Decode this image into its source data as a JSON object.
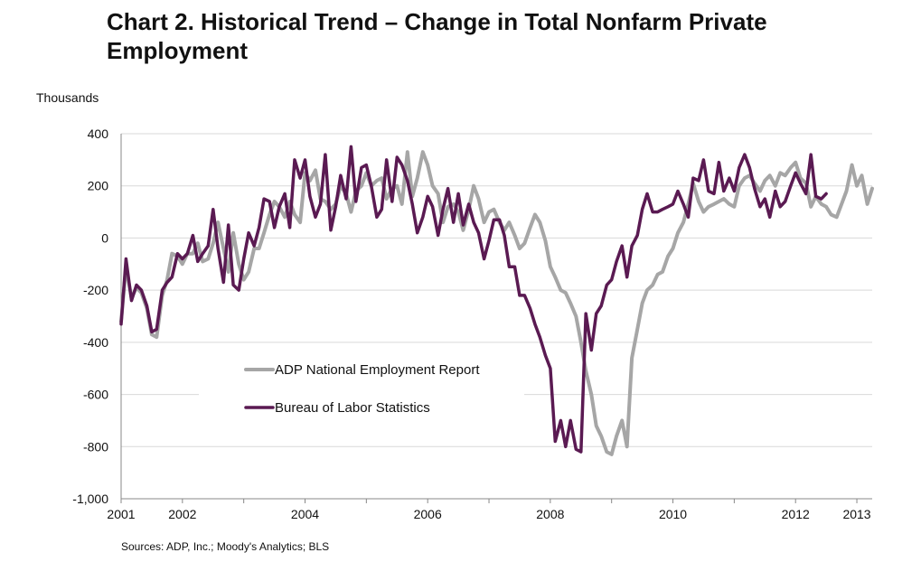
{
  "title": "Chart 2. Historical Trend – Change in Total Nonfarm Private Employment",
  "unit_label": "Thousands",
  "source": "Sources: ADP, Inc.; Moody's Analytics; BLS",
  "colors": {
    "adp": "#a6a6a6",
    "bls": "#5a1a52",
    "grid": "#d9d9d9",
    "axis": "#888888"
  },
  "chart_data": {
    "type": "line",
    "title": "Chart 2. Historical Trend – Change in Total Nonfarm Private Employment",
    "ylabel": "Thousands",
    "xlabel": "",
    "ylim": [
      -1000,
      400
    ],
    "xlim": [
      2001.0,
      2013.25
    ],
    "y_ticks": [
      400,
      200,
      0,
      -200,
      -400,
      -600,
      -800,
      -1000
    ],
    "y_tick_labels": [
      "400",
      "200",
      "0",
      "-200",
      "-400",
      "-600",
      "-800",
      "-1,000"
    ],
    "x_ticks": [
      2001,
      2002,
      2004,
      2006,
      2008,
      2010,
      2012,
      2013
    ],
    "grid": true,
    "legend_placement": "lower-left inside plot",
    "series": [
      {
        "name": "ADP National Employment Report",
        "color": "#a6a6a6",
        "points": [
          [
            2001.0,
            -320
          ],
          [
            2001.08,
            -110
          ],
          [
            2001.17,
            -230
          ],
          [
            2001.25,
            -190
          ],
          [
            2001.33,
            -210
          ],
          [
            2001.42,
            -270
          ],
          [
            2001.5,
            -370
          ],
          [
            2001.58,
            -380
          ],
          [
            2001.67,
            -220
          ],
          [
            2001.75,
            -160
          ],
          [
            2001.83,
            -60
          ],
          [
            2001.92,
            -70
          ],
          [
            2002.0,
            -100
          ],
          [
            2002.08,
            -60
          ],
          [
            2002.17,
            -60
          ],
          [
            2002.25,
            -20
          ],
          [
            2002.33,
            -90
          ],
          [
            2002.42,
            -80
          ],
          [
            2002.5,
            -20
          ],
          [
            2002.58,
            60
          ],
          [
            2002.67,
            -40
          ],
          [
            2002.75,
            -130
          ],
          [
            2002.83,
            20
          ],
          [
            2002.92,
            -100
          ],
          [
            2003.0,
            -160
          ],
          [
            2003.08,
            -130
          ],
          [
            2003.17,
            -40
          ],
          [
            2003.25,
            -40
          ],
          [
            2003.33,
            20
          ],
          [
            2003.42,
            90
          ],
          [
            2003.5,
            140
          ],
          [
            2003.58,
            120
          ],
          [
            2003.67,
            80
          ],
          [
            2003.75,
            140
          ],
          [
            2003.83,
            90
          ],
          [
            2003.92,
            60
          ],
          [
            2004.0,
            250
          ],
          [
            2004.08,
            220
          ],
          [
            2004.17,
            260
          ],
          [
            2004.25,
            150
          ],
          [
            2004.33,
            140
          ],
          [
            2004.42,
            110
          ],
          [
            2004.5,
            130
          ],
          [
            2004.58,
            200
          ],
          [
            2004.67,
            170
          ],
          [
            2004.75,
            100
          ],
          [
            2004.83,
            180
          ],
          [
            2004.92,
            200
          ],
          [
            2005.0,
            250
          ],
          [
            2005.08,
            200
          ],
          [
            2005.17,
            220
          ],
          [
            2005.25,
            230
          ],
          [
            2005.33,
            150
          ],
          [
            2005.42,
            190
          ],
          [
            2005.5,
            200
          ],
          [
            2005.58,
            130
          ],
          [
            2005.67,
            330
          ],
          [
            2005.75,
            160
          ],
          [
            2005.83,
            230
          ],
          [
            2005.92,
            330
          ],
          [
            2006.0,
            280
          ],
          [
            2006.08,
            200
          ],
          [
            2006.17,
            170
          ],
          [
            2006.25,
            60
          ],
          [
            2006.33,
            120
          ],
          [
            2006.42,
            130
          ],
          [
            2006.5,
            100
          ],
          [
            2006.58,
            30
          ],
          [
            2006.67,
            110
          ],
          [
            2006.75,
            200
          ],
          [
            2006.83,
            150
          ],
          [
            2006.92,
            60
          ],
          [
            2007.0,
            100
          ],
          [
            2007.08,
            110
          ],
          [
            2007.17,
            60
          ],
          [
            2007.25,
            30
          ],
          [
            2007.33,
            60
          ],
          [
            2007.42,
            10
          ],
          [
            2007.5,
            -40
          ],
          [
            2007.58,
            -20
          ],
          [
            2007.67,
            40
          ],
          [
            2007.75,
            90
          ],
          [
            2007.83,
            60
          ],
          [
            2007.92,
            -10
          ],
          [
            2008.0,
            -110
          ],
          [
            2008.08,
            -150
          ],
          [
            2008.17,
            -200
          ],
          [
            2008.25,
            -210
          ],
          [
            2008.33,
            -250
          ],
          [
            2008.42,
            -300
          ],
          [
            2008.5,
            -400
          ],
          [
            2008.58,
            -510
          ],
          [
            2008.67,
            -600
          ],
          [
            2008.75,
            -720
          ],
          [
            2008.83,
            -760
          ],
          [
            2008.92,
            -820
          ],
          [
            2009.0,
            -830
          ],
          [
            2009.08,
            -760
          ],
          [
            2009.17,
            -700
          ],
          [
            2009.25,
            -800
          ],
          [
            2009.33,
            -460
          ],
          [
            2009.42,
            -350
          ],
          [
            2009.5,
            -250
          ],
          [
            2009.58,
            -200
          ],
          [
            2009.67,
            -180
          ],
          [
            2009.75,
            -140
          ],
          [
            2009.83,
            -130
          ],
          [
            2009.92,
            -70
          ],
          [
            2010.0,
            -40
          ],
          [
            2010.08,
            20
          ],
          [
            2010.17,
            60
          ],
          [
            2010.25,
            130
          ],
          [
            2010.33,
            210
          ],
          [
            2010.42,
            140
          ],
          [
            2010.5,
            100
          ],
          [
            2010.58,
            120
          ],
          [
            2010.67,
            130
          ],
          [
            2010.75,
            140
          ],
          [
            2010.83,
            150
          ],
          [
            2010.92,
            130
          ],
          [
            2011.0,
            120
          ],
          [
            2011.08,
            200
          ],
          [
            2011.17,
            230
          ],
          [
            2011.25,
            240
          ],
          [
            2011.33,
            210
          ],
          [
            2011.42,
            180
          ],
          [
            2011.5,
            220
          ],
          [
            2011.58,
            240
          ],
          [
            2011.67,
            200
          ],
          [
            2011.75,
            250
          ],
          [
            2011.83,
            240
          ],
          [
            2011.92,
            270
          ],
          [
            2012.0,
            290
          ],
          [
            2012.08,
            230
          ],
          [
            2012.17,
            210
          ],
          [
            2012.25,
            120
          ],
          [
            2012.33,
            160
          ],
          [
            2012.42,
            130
          ],
          [
            2012.5,
            120
          ],
          [
            2012.58,
            90
          ],
          [
            2012.67,
            80
          ],
          [
            2012.75,
            130
          ],
          [
            2012.83,
            180
          ],
          [
            2012.92,
            280
          ],
          [
            2013.0,
            200
          ],
          [
            2013.08,
            240
          ],
          [
            2013.17,
            130
          ],
          [
            2013.25,
            190
          ]
        ]
      },
      {
        "name": "Bureau of Labor Statistics",
        "color": "#5a1a52",
        "points": [
          [
            2001.0,
            -330
          ],
          [
            2001.08,
            -80
          ],
          [
            2001.17,
            -240
          ],
          [
            2001.25,
            -180
          ],
          [
            2001.33,
            -200
          ],
          [
            2001.42,
            -260
          ],
          [
            2001.5,
            -360
          ],
          [
            2001.58,
            -350
          ],
          [
            2001.67,
            -200
          ],
          [
            2001.75,
            -170
          ],
          [
            2001.83,
            -150
          ],
          [
            2001.92,
            -60
          ],
          [
            2002.0,
            -80
          ],
          [
            2002.08,
            -60
          ],
          [
            2002.17,
            10
          ],
          [
            2002.25,
            -90
          ],
          [
            2002.33,
            -60
          ],
          [
            2002.42,
            -30
          ],
          [
            2002.5,
            110
          ],
          [
            2002.58,
            -40
          ],
          [
            2002.67,
            -170
          ],
          [
            2002.75,
            50
          ],
          [
            2002.83,
            -180
          ],
          [
            2002.92,
            -200
          ],
          [
            2003.0,
            -80
          ],
          [
            2003.08,
            20
          ],
          [
            2003.17,
            -30
          ],
          [
            2003.25,
            40
          ],
          [
            2003.33,
            150
          ],
          [
            2003.42,
            140
          ],
          [
            2003.5,
            40
          ],
          [
            2003.58,
            120
          ],
          [
            2003.67,
            170
          ],
          [
            2003.75,
            40
          ],
          [
            2003.83,
            300
          ],
          [
            2003.92,
            230
          ],
          [
            2004.0,
            300
          ],
          [
            2004.08,
            160
          ],
          [
            2004.17,
            80
          ],
          [
            2004.25,
            130
          ],
          [
            2004.33,
            320
          ],
          [
            2004.42,
            30
          ],
          [
            2004.5,
            120
          ],
          [
            2004.58,
            240
          ],
          [
            2004.67,
            150
          ],
          [
            2004.75,
            350
          ],
          [
            2004.83,
            140
          ],
          [
            2004.92,
            270
          ],
          [
            2005.0,
            280
          ],
          [
            2005.08,
            200
          ],
          [
            2005.17,
            80
          ],
          [
            2005.25,
            110
          ],
          [
            2005.33,
            300
          ],
          [
            2005.42,
            140
          ],
          [
            2005.5,
            310
          ],
          [
            2005.58,
            280
          ],
          [
            2005.67,
            220
          ],
          [
            2005.75,
            130
          ],
          [
            2005.83,
            20
          ],
          [
            2005.92,
            80
          ],
          [
            2006.0,
            160
          ],
          [
            2006.08,
            120
          ],
          [
            2006.17,
            10
          ],
          [
            2006.25,
            110
          ],
          [
            2006.33,
            190
          ],
          [
            2006.42,
            60
          ],
          [
            2006.5,
            170
          ],
          [
            2006.58,
            50
          ],
          [
            2006.67,
            130
          ],
          [
            2006.75,
            60
          ],
          [
            2006.83,
            20
          ],
          [
            2006.92,
            -80
          ],
          [
            2007.0,
            -10
          ],
          [
            2007.08,
            70
          ],
          [
            2007.17,
            70
          ],
          [
            2007.25,
            10
          ],
          [
            2007.33,
            -110
          ],
          [
            2007.42,
            -110
          ],
          [
            2007.5,
            -220
          ],
          [
            2007.58,
            -220
          ],
          [
            2007.67,
            -270
          ],
          [
            2007.75,
            -330
          ],
          [
            2007.83,
            -380
          ],
          [
            2007.92,
            -450
          ],
          [
            2008.0,
            -500
          ],
          [
            2008.08,
            -780
          ],
          [
            2008.17,
            -700
          ],
          [
            2008.25,
            -800
          ],
          [
            2008.33,
            -700
          ],
          [
            2008.42,
            -810
          ],
          [
            2008.5,
            -820
          ],
          [
            2008.58,
            -290
          ],
          [
            2008.67,
            -430
          ],
          [
            2008.75,
            -290
          ],
          [
            2008.83,
            -260
          ],
          [
            2008.92,
            -180
          ],
          [
            2009.0,
            -160
          ],
          [
            2009.08,
            -90
          ],
          [
            2009.17,
            -30
          ],
          [
            2009.25,
            -150
          ],
          [
            2009.33,
            -30
          ],
          [
            2009.42,
            10
          ],
          [
            2009.5,
            110
          ],
          [
            2009.58,
            170
          ],
          [
            2009.67,
            100
          ],
          [
            2009.75,
            100
          ],
          [
            2009.83,
            110
          ],
          [
            2009.92,
            120
          ],
          [
            2010.0,
            130
          ],
          [
            2010.08,
            180
          ],
          [
            2010.17,
            130
          ],
          [
            2010.25,
            80
          ],
          [
            2010.33,
            230
          ],
          [
            2010.42,
            220
          ],
          [
            2010.5,
            300
          ],
          [
            2010.58,
            180
          ],
          [
            2010.67,
            170
          ],
          [
            2010.75,
            290
          ],
          [
            2010.83,
            180
          ],
          [
            2010.92,
            230
          ],
          [
            2011.0,
            180
          ],
          [
            2011.08,
            270
          ],
          [
            2011.17,
            320
          ],
          [
            2011.25,
            270
          ],
          [
            2011.33,
            190
          ],
          [
            2011.42,
            120
          ],
          [
            2011.5,
            150
          ],
          [
            2011.58,
            80
          ],
          [
            2011.67,
            180
          ],
          [
            2011.75,
            120
          ],
          [
            2011.83,
            140
          ],
          [
            2011.92,
            200
          ],
          [
            2012.0,
            250
          ],
          [
            2012.08,
            210
          ],
          [
            2012.17,
            170
          ],
          [
            2012.25,
            320
          ],
          [
            2012.33,
            160
          ],
          [
            2012.42,
            150
          ],
          [
            2012.5,
            170
          ]
        ]
      }
    ]
  }
}
